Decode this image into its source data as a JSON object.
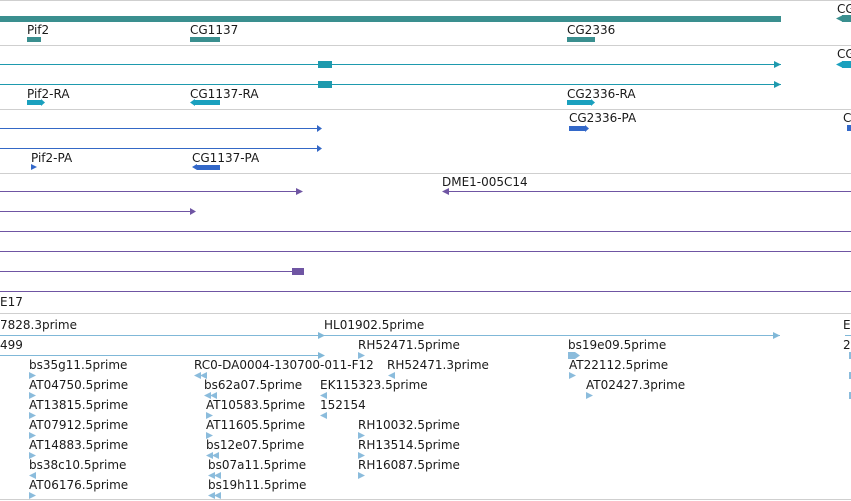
{
  "colors": {
    "gene": "#3a8f8f",
    "mrna": "#1e9aae",
    "mrna_cds": "#1aa0be",
    "protein": "#3368c9",
    "protein_line": "#3468c6",
    "match": "#6f55a3",
    "est": "#8bbcdc",
    "est_line": "#80b8d8",
    "divider": "#cfcfcf"
  },
  "labels": {
    "gene_cg_edge": "CG",
    "gene_pif2": "Pif2",
    "gene_cg1137": "CG1137",
    "gene_cg2336": "CG2336",
    "mrna_cg_edge": "CG",
    "mrna_pif2": "Pif2-RA",
    "mrna_cg1137": "CG1137-RA",
    "mrna_cg2336": "CG2336-RA",
    "prot_cg2336": "CG2336-PA",
    "prot_c_edge": "C",
    "prot_pif2": "Pif2-PA",
    "prot_cg1137": "CG1137-PA",
    "match_dme1": "DME1-005C14",
    "match_e17": "E17",
    "est_7828": "7828.3prime",
    "est_hl01902": "HL01902.5prime",
    "est_e_edge": "E",
    "est_499": "499",
    "est_rh52471_5": "RH52471.5prime",
    "est_bs19e09": "bs19e09.5prime",
    "est_2_edge": "2",
    "est_bs35g11": "bs35g11.5prime",
    "est_rc0": "RC0-DA0004-130700-011-F12",
    "est_rh52471_3": "RH52471.3prime",
    "est_at22112": "AT22112.5prime",
    "est_at04750": "AT04750.5prime",
    "est_bs62a07": "bs62a07.5prime",
    "est_ek115323": "EK115323.5prime",
    "est_at02427": "AT02427.3prime",
    "est_at13815": "AT13815.5prime",
    "est_at10583": "AT10583.5prime",
    "est_152154": "152154",
    "est_at07912": "AT07912.5prime",
    "est_at11605": "AT11605.5prime",
    "est_rh10032": "RH10032.5prime",
    "est_at14883": "AT14883.5prime",
    "est_bs12e07": "bs12e07.5prime",
    "est_rh13514": "RH13514.5prime",
    "est_bs38c10": "bs38c10.5prime",
    "est_bs07a11": "bs07a11.5prime",
    "est_rh16087": "RH16087.5prime",
    "est_at06176": "AT06176.5prime",
    "est_bs19h11": "bs19h11.5prime"
  }
}
